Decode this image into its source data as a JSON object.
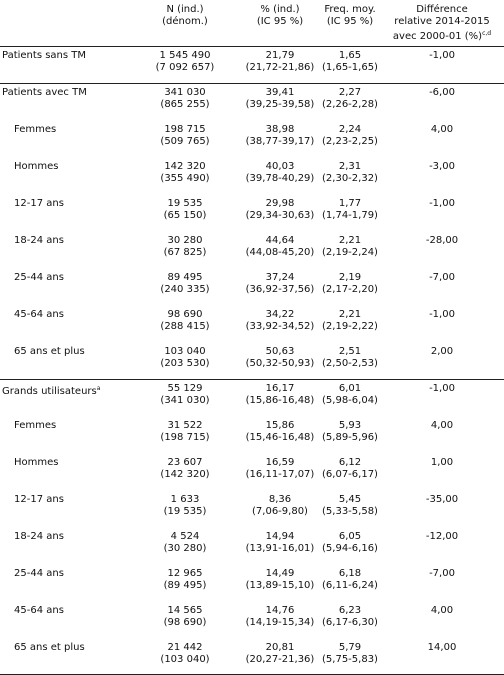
{
  "header": {
    "columns": [
      {
        "lines": [
          "N (ind.)",
          "(dénom.)"
        ]
      },
      {
        "lines": [
          "% (ind.)",
          "(IC 95 %)"
        ]
      },
      {
        "lines": [
          "Freq. moy.",
          "(IC 95 %)"
        ]
      },
      {
        "lines": [
          "Différence",
          "relative 2014-2015",
          "avec 2000-01 (%)"
        ],
        "sup": "c,d"
      }
    ]
  },
  "groups": [
    {
      "label": "Patients sans TM",
      "cells": [
        [
          "1 545 490",
          "(7 092 657)"
        ],
        [
          "21,79",
          "(21,72-21,86)"
        ],
        [
          "1,65",
          "(1,65-1,65)"
        ],
        "-1,00"
      ],
      "rows": []
    },
    {
      "label": "Patients avec TM",
      "cells": [
        [
          "341 030",
          "(865 255)"
        ],
        [
          "39,41",
          "(39,25-39,58)"
        ],
        [
          "2,27",
          "(2,26-2,28)"
        ],
        "-6,00"
      ],
      "rows": [
        {
          "label": "Femmes",
          "cells": [
            [
              "198 715",
              "(509 765)"
            ],
            [
              "38,98",
              "(38,77-39,17)"
            ],
            [
              "2,24",
              "(2,23-2,25)"
            ],
            "4,00"
          ]
        },
        {
          "label": "Hommes",
          "cells": [
            [
              "142 320",
              "(355 490)"
            ],
            [
              "40,03",
              "(39,78-40,29)"
            ],
            [
              "2,31",
              "(2,30-2,32)"
            ],
            "-3,00"
          ]
        },
        {
          "label": "12-17 ans",
          "cells": [
            [
              "19 535",
              "(65 150)"
            ],
            [
              "29,98",
              "(29,34-30,63)"
            ],
            [
              "1,77",
              "(1,74-1,79)"
            ],
            "-1,00"
          ]
        },
        {
          "label": "18-24 ans",
          "cells": [
            [
              "30 280",
              "(67 825)"
            ],
            [
              "44,64",
              "(44,08-45,20)"
            ],
            [
              "2,21",
              "(2,19-2,24)"
            ],
            "-28,00"
          ]
        },
        {
          "label": "25-44 ans",
          "cells": [
            [
              "89 495",
              "(240 335)"
            ],
            [
              "37,24",
              "(36,92-37,56)"
            ],
            [
              "2,19",
              "(2,17-2,20)"
            ],
            "-7,00"
          ]
        },
        {
          "label": "45-64 ans",
          "cells": [
            [
              "98 690",
              "(288 415)"
            ],
            [
              "34,22",
              "(33,92-34,52)"
            ],
            [
              "2,21",
              "(2,19-2,22)"
            ],
            "-1,00"
          ]
        },
        {
          "label": "65 ans et plus",
          "cells": [
            [
              "103 040",
              "(203 530)"
            ],
            [
              "50,63",
              "(50,32-50,93)"
            ],
            [
              "2,51",
              "(2,50-2,53)"
            ],
            "2,00"
          ]
        }
      ]
    },
    {
      "label": "Grands utilisateurs",
      "label_sup": "a",
      "cells": [
        [
          "55 129",
          "(341 030)"
        ],
        [
          "16,17",
          "(15,86-16,48)"
        ],
        [
          "6,01",
          "(5,98-6,04)"
        ],
        "-1,00"
      ],
      "rows": [
        {
          "label": "Femmes",
          "cells": [
            [
              "31 522",
              "(198 715)"
            ],
            [
              "15,86",
              "(15,46-16,48)"
            ],
            [
              "5,93",
              "(5,89-5,96)"
            ],
            "4,00"
          ]
        },
        {
          "label": "Hommes",
          "cells": [
            [
              "23 607",
              "(142 320)"
            ],
            [
              "16,59",
              "(16,11-17,07)"
            ],
            [
              "6,12",
              "(6,07-6,17)"
            ],
            "1,00"
          ]
        },
        {
          "label": "12-17 ans",
          "cells": [
            [
              "1 633",
              "(19 535)"
            ],
            [
              "8,36",
              "(7,06-9,80)"
            ],
            [
              "5,45",
              "(5,33-5,58)"
            ],
            "-35,00"
          ]
        },
        {
          "label": "18-24 ans",
          "cells": [
            [
              "4 524",
              "(30 280)"
            ],
            [
              "14,94",
              "(13,91-16,01)"
            ],
            [
              "6,05",
              "(5,94-6,16)"
            ],
            "-12,00"
          ]
        },
        {
          "label": "25-44 ans",
          "cells": [
            [
              "12 965",
              "(89 495)"
            ],
            [
              "14,49",
              "(13,89-15,10)"
            ],
            [
              "6,18",
              "(6,11-6,24)"
            ],
            "-7,00"
          ]
        },
        {
          "label": "45-64 ans",
          "cells": [
            [
              "14 565",
              "(98 690)"
            ],
            [
              "14,76",
              "(14,19-15,34)"
            ],
            [
              "6,23",
              "(6,17-6,30)"
            ],
            "4,00"
          ]
        },
        {
          "label": "65 ans et plus",
          "cells": [
            [
              "21 442",
              "(103 040)"
            ],
            [
              "20,81",
              "(20,27-21,36)"
            ],
            [
              "5,79",
              "(5,75-5,83)"
            ],
            "14,00"
          ]
        }
      ]
    }
  ]
}
